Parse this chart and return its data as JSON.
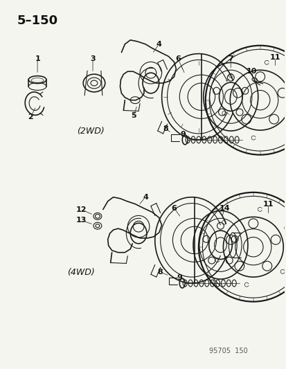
{
  "title": "5–150",
  "bg_color": "#f5f5f0",
  "fig_width": 4.14,
  "fig_height": 5.33,
  "dpi": 100,
  "watermark": "95705  150",
  "label_2wd": "(2WD)",
  "label_4wd": "(4WD)",
  "line_color": "#1a1a1a",
  "text_color": "#111111",
  "label_fontsize": 8,
  "title_fontsize": 13,
  "watermark_fontsize": 7
}
